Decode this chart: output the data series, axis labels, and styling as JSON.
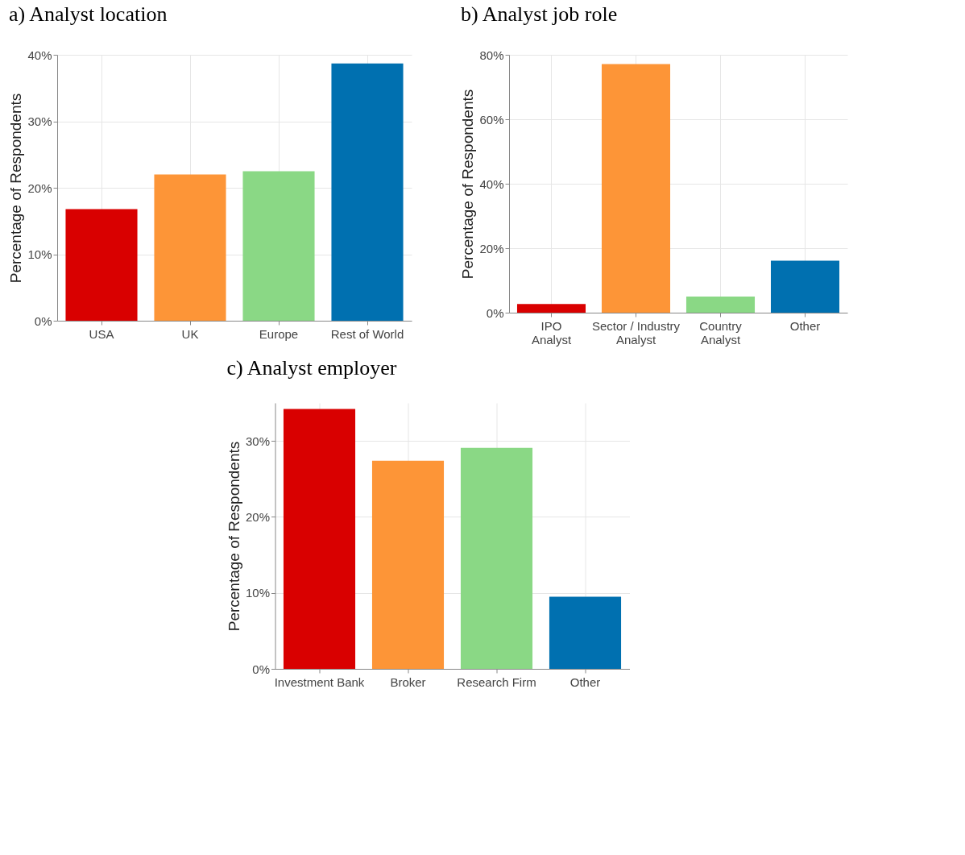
{
  "chart_data": [
    {
      "type": "bar",
      "title": "a)   Analyst location",
      "ylabel": "Percentage of Respondents",
      "categories": [
        "USA",
        "UK",
        "Europe",
        "Rest of World"
      ],
      "values": [
        16.8,
        22.0,
        22.5,
        38.7
      ],
      "colors": [
        "#d90000",
        "#fd9537",
        "#8ad885",
        "#0070b0"
      ],
      "ylim": [
        0,
        40
      ],
      "yticks": [
        {
          "value": 0,
          "label": "0%"
        },
        {
          "value": 10,
          "label": "10%"
        },
        {
          "value": 20,
          "label": "20%"
        },
        {
          "value": 30,
          "label": "30%"
        },
        {
          "value": 40,
          "label": "40%"
        }
      ],
      "grid": true
    },
    {
      "type": "bar",
      "title": "b)   Analyst job role",
      "ylabel": "Percentage of Respondents",
      "categories": [
        "IPO Analyst",
        "Sector / Industry Analyst",
        "Country Analyst",
        "Other"
      ],
      "values": [
        2.7,
        77.1,
        5.0,
        16.1
      ],
      "colors": [
        "#d90000",
        "#fd9537",
        "#8ad885",
        "#0070b0"
      ],
      "ylim": [
        0,
        80
      ],
      "yticks": [
        {
          "value": 0,
          "label": "0%"
        },
        {
          "value": 20,
          "label": "20%"
        },
        {
          "value": 40,
          "label": "40%"
        },
        {
          "value": 60,
          "label": "60%"
        },
        {
          "value": 80,
          "label": "80%"
        }
      ],
      "grid": true
    },
    {
      "type": "bar",
      "title": "c)   Analyst employer",
      "ylabel": "Percentage of Respondents",
      "categories": [
        "Investment Bank",
        "Broker",
        "Research Firm",
        "Other"
      ],
      "values": [
        34.2,
        27.4,
        29.1,
        9.5
      ],
      "colors": [
        "#d90000",
        "#fd9537",
        "#8ad885",
        "#0070b0"
      ],
      "ylim": [
        0,
        35
      ],
      "yticks": [
        {
          "value": 0,
          "label": "0%"
        },
        {
          "value": 10,
          "label": "10%"
        },
        {
          "value": 20,
          "label": "20%"
        },
        {
          "value": 30,
          "label": "30%"
        }
      ],
      "grid": true
    }
  ]
}
